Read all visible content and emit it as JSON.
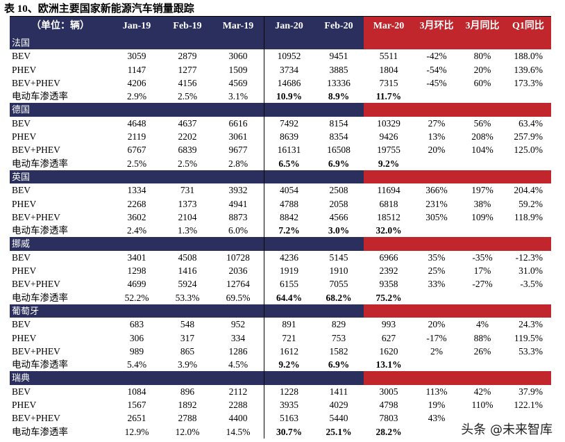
{
  "title": "表 10、欧洲主要国家新能源汽车销量跟踪",
  "header": [
    "（单位：辆）",
    "Jan-19",
    "Feb-19",
    "Mar-19",
    "Jan-20",
    "Feb-20",
    "Mar-20",
    "3月环比",
    "3月同比",
    "Q1同比"
  ],
  "sections": [
    {
      "name": "法国",
      "rows": [
        [
          "BEV",
          "3059",
          "2879",
          "3060",
          "10952",
          "9451",
          "5511",
          "-42%",
          "80%",
          "188.0%"
        ],
        [
          "PHEV",
          "1147",
          "1277",
          "1509",
          "3734",
          "3885",
          "1804",
          "-54%",
          "20%",
          "139.6%"
        ],
        [
          "BEV+PHEV",
          "4206",
          "4156",
          "4569",
          "14686",
          "13336",
          "7315",
          "-45%",
          "60%",
          "173.3%"
        ],
        [
          "电动车渗透率",
          "2.9%",
          "2.5%",
          "3.1%",
          "10.9%",
          "8.9%",
          "11.7%",
          "",
          "",
          ""
        ]
      ]
    },
    {
      "name": "德国",
      "rows": [
        [
          "BEV",
          "4648",
          "4637",
          "6616",
          "7492",
          "8154",
          "10329",
          "27%",
          "56%",
          "63.4%"
        ],
        [
          "PHEV",
          "2119",
          "2202",
          "3061",
          "8639",
          "8354",
          "9426",
          "13%",
          "208%",
          "257.9%"
        ],
        [
          "BEV+PHEV",
          "6767",
          "6839",
          "9677",
          "16131",
          "16508",
          "19755",
          "20%",
          "104%",
          "125.0%"
        ],
        [
          "电动车渗透率",
          "2.5%",
          "2.5%",
          "2.8%",
          "6.5%",
          "6.9%",
          "9.2%",
          "",
          "",
          ""
        ]
      ]
    },
    {
      "name": "英国",
      "rows": [
        [
          "BEV",
          "1334",
          "731",
          "3932",
          "4054",
          "2508",
          "11694",
          "366%",
          "197%",
          "204.4%"
        ],
        [
          "PHEV",
          "2268",
          "1373",
          "4941",
          "4788",
          "2058",
          "6818",
          "231%",
          "38%",
          "59.2%"
        ],
        [
          "BEV+PHEV",
          "3602",
          "2104",
          "8873",
          "8842",
          "4566",
          "18512",
          "305%",
          "109%",
          "118.9%"
        ],
        [
          "电动车渗透率",
          "2.4%",
          "1.3%",
          "6.0%",
          "7.2%",
          "3.0%",
          "32.0%",
          "",
          "",
          ""
        ]
      ]
    },
    {
      "name": "挪威",
      "rows": [
        [
          "BEV",
          "3401",
          "4508",
          "10728",
          "4236",
          "5145",
          "6966",
          "35%",
          "-35%",
          "-12.3%"
        ],
        [
          "PHEV",
          "1298",
          "1416",
          "2036",
          "1919",
          "1910",
          "2392",
          "25%",
          "17%",
          "31.0%"
        ],
        [
          "BEV+PHEV",
          "4699",
          "5924",
          "12764",
          "6155",
          "7055",
          "9358",
          "33%",
          "-27%",
          "-3.5%"
        ],
        [
          "电动车渗透率",
          "52.2%",
          "53.3%",
          "69.5%",
          "64.4%",
          "68.2%",
          "75.2%",
          "",
          "",
          ""
        ]
      ]
    },
    {
      "name": "葡萄牙",
      "rows": [
        [
          "BEV",
          "683",
          "548",
          "952",
          "891",
          "829",
          "993",
          "20%",
          "4%",
          "24.3%"
        ],
        [
          "PHEV",
          "306",
          "317",
          "334",
          "721",
          "753",
          "627",
          "-17%",
          "88%",
          "119.5%"
        ],
        [
          "BEV+PHEV",
          "989",
          "865",
          "1286",
          "1612",
          "1582",
          "1620",
          "2%",
          "26%",
          "53.3%"
        ],
        [
          "电动车渗透率",
          "5.4%",
          "3.9%",
          "4.5%",
          "9.2%",
          "6.9%",
          "13.1%",
          "",
          "",
          ""
        ]
      ]
    },
    {
      "name": "瑞典",
      "rows": [
        [
          "BEV",
          "1084",
          "896",
          "2112",
          "1228",
          "1411",
          "3005",
          "113%",
          "42%",
          "37.9%"
        ],
        [
          "PHEV",
          "1567",
          "1892",
          "2288",
          "3935",
          "4029",
          "4798",
          "19%",
          "110%",
          "122.1%"
        ],
        [
          "BEV+PHEV",
          "2651",
          "2788",
          "4400",
          "5163",
          "5440",
          "7803",
          "43%",
          "",
          ""
        ],
        [
          "电动车渗透率",
          "12.9%",
          "12.0%",
          "14.5%",
          "30.7%",
          "25.1%",
          "28.2%",
          "",
          "",
          ""
        ]
      ]
    }
  ],
  "watermark": "头条 @未来智库",
  "colors": {
    "navy": "#2b2f5e",
    "red": "#c0262c"
  }
}
